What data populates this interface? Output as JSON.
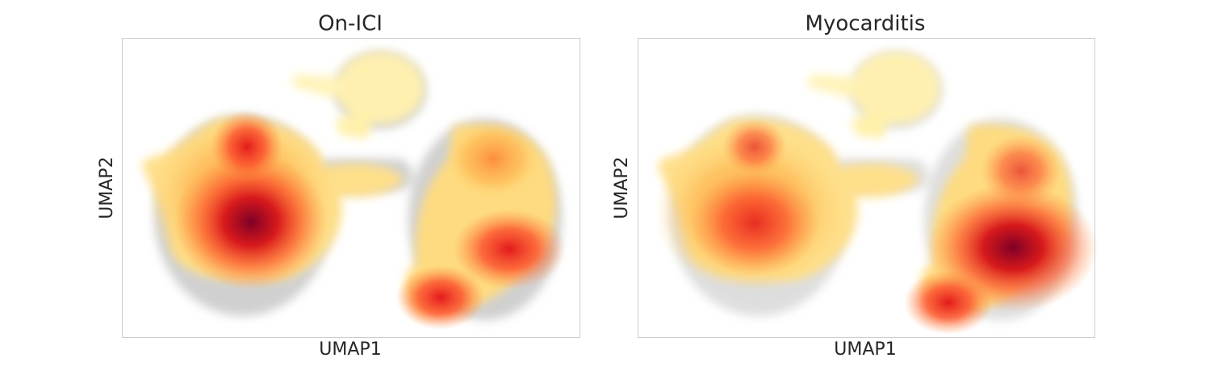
{
  "chart_data": [
    {
      "type": "scatter",
      "title": "On-ICI",
      "xlabel": "UMAP1",
      "ylabel": "UMAP2"
    },
    {
      "type": "scatter",
      "title": "Myocarditis",
      "xlabel": "UMAP1",
      "ylabel": "UMAP2"
    }
  ]
}
